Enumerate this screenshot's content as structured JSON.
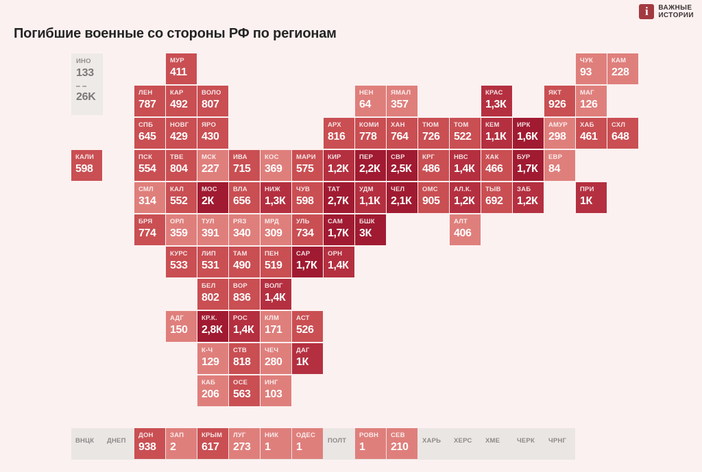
{
  "header": {
    "title": "Погибшие военные со стороны РФ по регионам",
    "logo": {
      "line1": "ВАЖНЫЕ",
      "line2": "ИСТОРИИ",
      "icon_glyph": "i"
    }
  },
  "legend": {
    "region_label": "ИНО",
    "region_value": "133",
    "total_value": "26K"
  },
  "palette": {
    "page_bg": "#fbf1f0",
    "level1": "#df7f7c",
    "level2": "#c94f53",
    "level3": "#b43040",
    "level4": "#a01b31",
    "nodata_strip_bg": "#eae6e4",
    "nodata_text": "#8d8989",
    "legend_bg": "#edeae8",
    "legend_text": "#7c7878",
    "logo_red": "#a23a40",
    "title_color": "#242424"
  },
  "chart_data": {
    "type": "heatmap",
    "title": "Погибшие военные со стороны РФ по регионам",
    "legend": {
      "other_label": "ИНО",
      "other_value": "133",
      "total": "26K"
    },
    "color_levels": {
      "level1": "lowest values (salmon)",
      "level2": "medium values (red)",
      "level3": "about 1K-1,4K (dark red)",
      "level4": "1,6K and above (darkest red)"
    },
    "tiles": [
      {
        "label": "МУР",
        "value": "411",
        "level": 2,
        "row": 0,
        "col": 3
      },
      {
        "label": "ЧУК",
        "value": "93",
        "level": 1,
        "row": 0,
        "col": 16
      },
      {
        "label": "КАМ",
        "value": "228",
        "level": 1,
        "row": 0,
        "col": 17
      },
      {
        "label": "ЛЕН",
        "value": "787",
        "level": 2,
        "row": 1,
        "col": 2
      },
      {
        "label": "КАР",
        "value": "492",
        "level": 2,
        "row": 1,
        "col": 3
      },
      {
        "label": "ВОЛО",
        "value": "807",
        "level": 2,
        "row": 1,
        "col": 4
      },
      {
        "label": "НЕН",
        "value": "64",
        "level": 1,
        "row": 1,
        "col": 9
      },
      {
        "label": "ЯМАЛ",
        "value": "357",
        "level": 1,
        "row": 1,
        "col": 10
      },
      {
        "label": "КРАС",
        "value": "1,3К",
        "level": 3,
        "row": 1,
        "col": 13
      },
      {
        "label": "ЯКТ",
        "value": "926",
        "level": 2,
        "row": 1,
        "col": 15
      },
      {
        "label": "МАГ",
        "value": "126",
        "level": 1,
        "row": 1,
        "col": 16
      },
      {
        "label": "СПБ",
        "value": "645",
        "level": 2,
        "row": 2,
        "col": 2
      },
      {
        "label": "НОВГ",
        "value": "429",
        "level": 2,
        "row": 2,
        "col": 3
      },
      {
        "label": "ЯРО",
        "value": "430",
        "level": 2,
        "row": 2,
        "col": 4
      },
      {
        "label": "АРХ",
        "value": "816",
        "level": 2,
        "row": 2,
        "col": 8
      },
      {
        "label": "КОМИ",
        "value": "778",
        "level": 2,
        "row": 2,
        "col": 9
      },
      {
        "label": "ХАН",
        "value": "764",
        "level": 2,
        "row": 2,
        "col": 10
      },
      {
        "label": "ТЮМ",
        "value": "726",
        "level": 2,
        "row": 2,
        "col": 11
      },
      {
        "label": "ТОМ",
        "value": "522",
        "level": 2,
        "row": 2,
        "col": 12
      },
      {
        "label": "КЕМ",
        "value": "1,1К",
        "level": 3,
        "row": 2,
        "col": 13
      },
      {
        "label": "ИРК",
        "value": "1,6К",
        "level": 4,
        "row": 2,
        "col": 14
      },
      {
        "label": "АМУР",
        "value": "298",
        "level": 1,
        "row": 2,
        "col": 15
      },
      {
        "label": "ХАБ",
        "value": "461",
        "level": 2,
        "row": 2,
        "col": 16
      },
      {
        "label": "СХЛ",
        "value": "648",
        "level": 2,
        "row": 2,
        "col": 17
      },
      {
        "label": "КАЛИ",
        "value": "598",
        "level": 2,
        "row": 3,
        "col": 0
      },
      {
        "label": "ПСК",
        "value": "554",
        "level": 2,
        "row": 3,
        "col": 2
      },
      {
        "label": "ТВЕ",
        "value": "804",
        "level": 2,
        "row": 3,
        "col": 3
      },
      {
        "label": "МСК",
        "value": "227",
        "level": 1,
        "row": 3,
        "col": 4
      },
      {
        "label": "ИВА",
        "value": "715",
        "level": 2,
        "row": 3,
        "col": 5
      },
      {
        "label": "КОС",
        "value": "369",
        "level": 1,
        "row": 3,
        "col": 6
      },
      {
        "label": "МАРИ",
        "value": "575",
        "level": 2,
        "row": 3,
        "col": 7
      },
      {
        "label": "КИР",
        "value": "1,2К",
        "level": 3,
        "row": 3,
        "col": 8
      },
      {
        "label": "ПЕР",
        "value": "2,2К",
        "level": 4,
        "row": 3,
        "col": 9
      },
      {
        "label": "СВР",
        "value": "2,5К",
        "level": 4,
        "row": 3,
        "col": 10
      },
      {
        "label": "КРГ",
        "value": "486",
        "level": 2,
        "row": 3,
        "col": 11
      },
      {
        "label": "НВС",
        "value": "1,4К",
        "level": 3,
        "row": 3,
        "col": 12
      },
      {
        "label": "ХАК",
        "value": "466",
        "level": 2,
        "row": 3,
        "col": 13
      },
      {
        "label": "БУР",
        "value": "1,7К",
        "level": 4,
        "row": 3,
        "col": 14
      },
      {
        "label": "ЕВР",
        "value": "84",
        "level": 1,
        "row": 3,
        "col": 15
      },
      {
        "label": "СМЛ",
        "value": "314",
        "level": 1,
        "row": 4,
        "col": 2
      },
      {
        "label": "КАЛ",
        "value": "552",
        "level": 2,
        "row": 4,
        "col": 3
      },
      {
        "label": "МОС",
        "value": "2К",
        "level": 4,
        "row": 4,
        "col": 4
      },
      {
        "label": "ВЛА",
        "value": "656",
        "level": 2,
        "row": 4,
        "col": 5
      },
      {
        "label": "НИЖ",
        "value": "1,3К",
        "level": 3,
        "row": 4,
        "col": 6
      },
      {
        "label": "ЧУВ",
        "value": "598",
        "level": 2,
        "row": 4,
        "col": 7
      },
      {
        "label": "ТАТ",
        "value": "2,7К",
        "level": 4,
        "row": 4,
        "col": 8
      },
      {
        "label": "УДМ",
        "value": "1,1К",
        "level": 3,
        "row": 4,
        "col": 9
      },
      {
        "label": "ЧЕЛ",
        "value": "2,1К",
        "level": 4,
        "row": 4,
        "col": 10
      },
      {
        "label": "ОМС",
        "value": "905",
        "level": 2,
        "row": 4,
        "col": 11
      },
      {
        "label": "АЛ.К.",
        "value": "1,2К",
        "level": 3,
        "row": 4,
        "col": 12
      },
      {
        "label": "ТЫВ",
        "value": "692",
        "level": 2,
        "row": 4,
        "col": 13
      },
      {
        "label": "ЗАБ",
        "value": "1,2К",
        "level": 3,
        "row": 4,
        "col": 14
      },
      {
        "label": "ПРИ",
        "value": "1К",
        "level": 3,
        "row": 4,
        "col": 16
      },
      {
        "label": "БРЯ",
        "value": "774",
        "level": 2,
        "row": 5,
        "col": 2
      },
      {
        "label": "ОРЛ",
        "value": "359",
        "level": 1,
        "row": 5,
        "col": 3
      },
      {
        "label": "ТУЛ",
        "value": "391",
        "level": 1,
        "row": 5,
        "col": 4
      },
      {
        "label": "РЯЗ",
        "value": "340",
        "level": 1,
        "row": 5,
        "col": 5
      },
      {
        "label": "МРД",
        "value": "309",
        "level": 1,
        "row": 5,
        "col": 6
      },
      {
        "label": "УЛЬ",
        "value": "734",
        "level": 2,
        "row": 5,
        "col": 7
      },
      {
        "label": "САМ",
        "value": "1,7К",
        "level": 4,
        "row": 5,
        "col": 8
      },
      {
        "label": "БШК",
        "value": "3К",
        "level": 4,
        "row": 5,
        "col": 9
      },
      {
        "label": "АЛТ",
        "value": "406",
        "level": 1,
        "row": 5,
        "col": 12
      },
      {
        "label": "КУРС",
        "value": "533",
        "level": 2,
        "row": 6,
        "col": 3
      },
      {
        "label": "ЛИП",
        "value": "531",
        "level": 2,
        "row": 6,
        "col": 4
      },
      {
        "label": "ТАМ",
        "value": "490",
        "level": 2,
        "row": 6,
        "col": 5
      },
      {
        "label": "ПЕН",
        "value": "519",
        "level": 2,
        "row": 6,
        "col": 6
      },
      {
        "label": "САР",
        "value": "1,7К",
        "level": 4,
        "row": 6,
        "col": 7
      },
      {
        "label": "ОРН",
        "value": "1,4К",
        "level": 3,
        "row": 6,
        "col": 8
      },
      {
        "label": "БЕЛ",
        "value": "802",
        "level": 2,
        "row": 7,
        "col": 4
      },
      {
        "label": "ВОР",
        "value": "836",
        "level": 2,
        "row": 7,
        "col": 5
      },
      {
        "label": "ВОЛГ",
        "value": "1,4К",
        "level": 3,
        "row": 7,
        "col": 6
      },
      {
        "label": "АДГ",
        "value": "150",
        "level": 1,
        "row": 8,
        "col": 3
      },
      {
        "label": "КР.К.",
        "value": "2,8К",
        "level": 4,
        "row": 8,
        "col": 4
      },
      {
        "label": "РОС",
        "value": "1,4К",
        "level": 3,
        "row": 8,
        "col": 5
      },
      {
        "label": "КЛМ",
        "value": "171",
        "level": 1,
        "row": 8,
        "col": 6
      },
      {
        "label": "АСТ",
        "value": "526",
        "level": 2,
        "row": 8,
        "col": 7
      },
      {
        "label": "К-Ч",
        "value": "129",
        "level": 1,
        "row": 9,
        "col": 4
      },
      {
        "label": "СТВ",
        "value": "818",
        "level": 2,
        "row": 9,
        "col": 5
      },
      {
        "label": "ЧЕЧ",
        "value": "280",
        "level": 1,
        "row": 9,
        "col": 6
      },
      {
        "label": "ДАГ",
        "value": "1К",
        "level": 3,
        "row": 9,
        "col": 7
      },
      {
        "label": "КАБ",
        "value": "206",
        "level": 1,
        "row": 10,
        "col": 4
      },
      {
        "label": "ОСЕ",
        "value": "563",
        "level": 2,
        "row": 10,
        "col": 5
      },
      {
        "label": "ИНГ",
        "value": "103",
        "level": 1,
        "row": 10,
        "col": 6
      }
    ],
    "strip_tiles": [
      {
        "label": "ВНЦК",
        "col": 0
      },
      {
        "label": "ДНЕП",
        "col": 1
      },
      {
        "label": "ДОН",
        "value": "938",
        "level": 2,
        "col": 2
      },
      {
        "label": "ЗАП",
        "value": "2",
        "level": 1,
        "col": 3
      },
      {
        "label": "КРЫМ",
        "value": "617",
        "level": 2,
        "col": 4
      },
      {
        "label": "ЛУГ",
        "value": "273",
        "level": 1,
        "col": 5
      },
      {
        "label": "НИК",
        "value": "1",
        "level": 1,
        "col": 6
      },
      {
        "label": "ОДЕС",
        "value": "1",
        "level": 1,
        "col": 7
      },
      {
        "label": "ПОЛТ",
        "col": 8
      },
      {
        "label": "РОВН",
        "value": "1",
        "level": 1,
        "col": 9
      },
      {
        "label": "СЕВ",
        "value": "210",
        "level": 1,
        "col": 10
      },
      {
        "label": "ХАРЬ",
        "col": 11
      },
      {
        "label": "ХЕРС",
        "col": 12
      },
      {
        "label": "ХМЕ",
        "col": 13
      },
      {
        "label": "ЧЕРК",
        "col": 14
      },
      {
        "label": "ЧРНГ",
        "col": 15
      }
    ]
  }
}
